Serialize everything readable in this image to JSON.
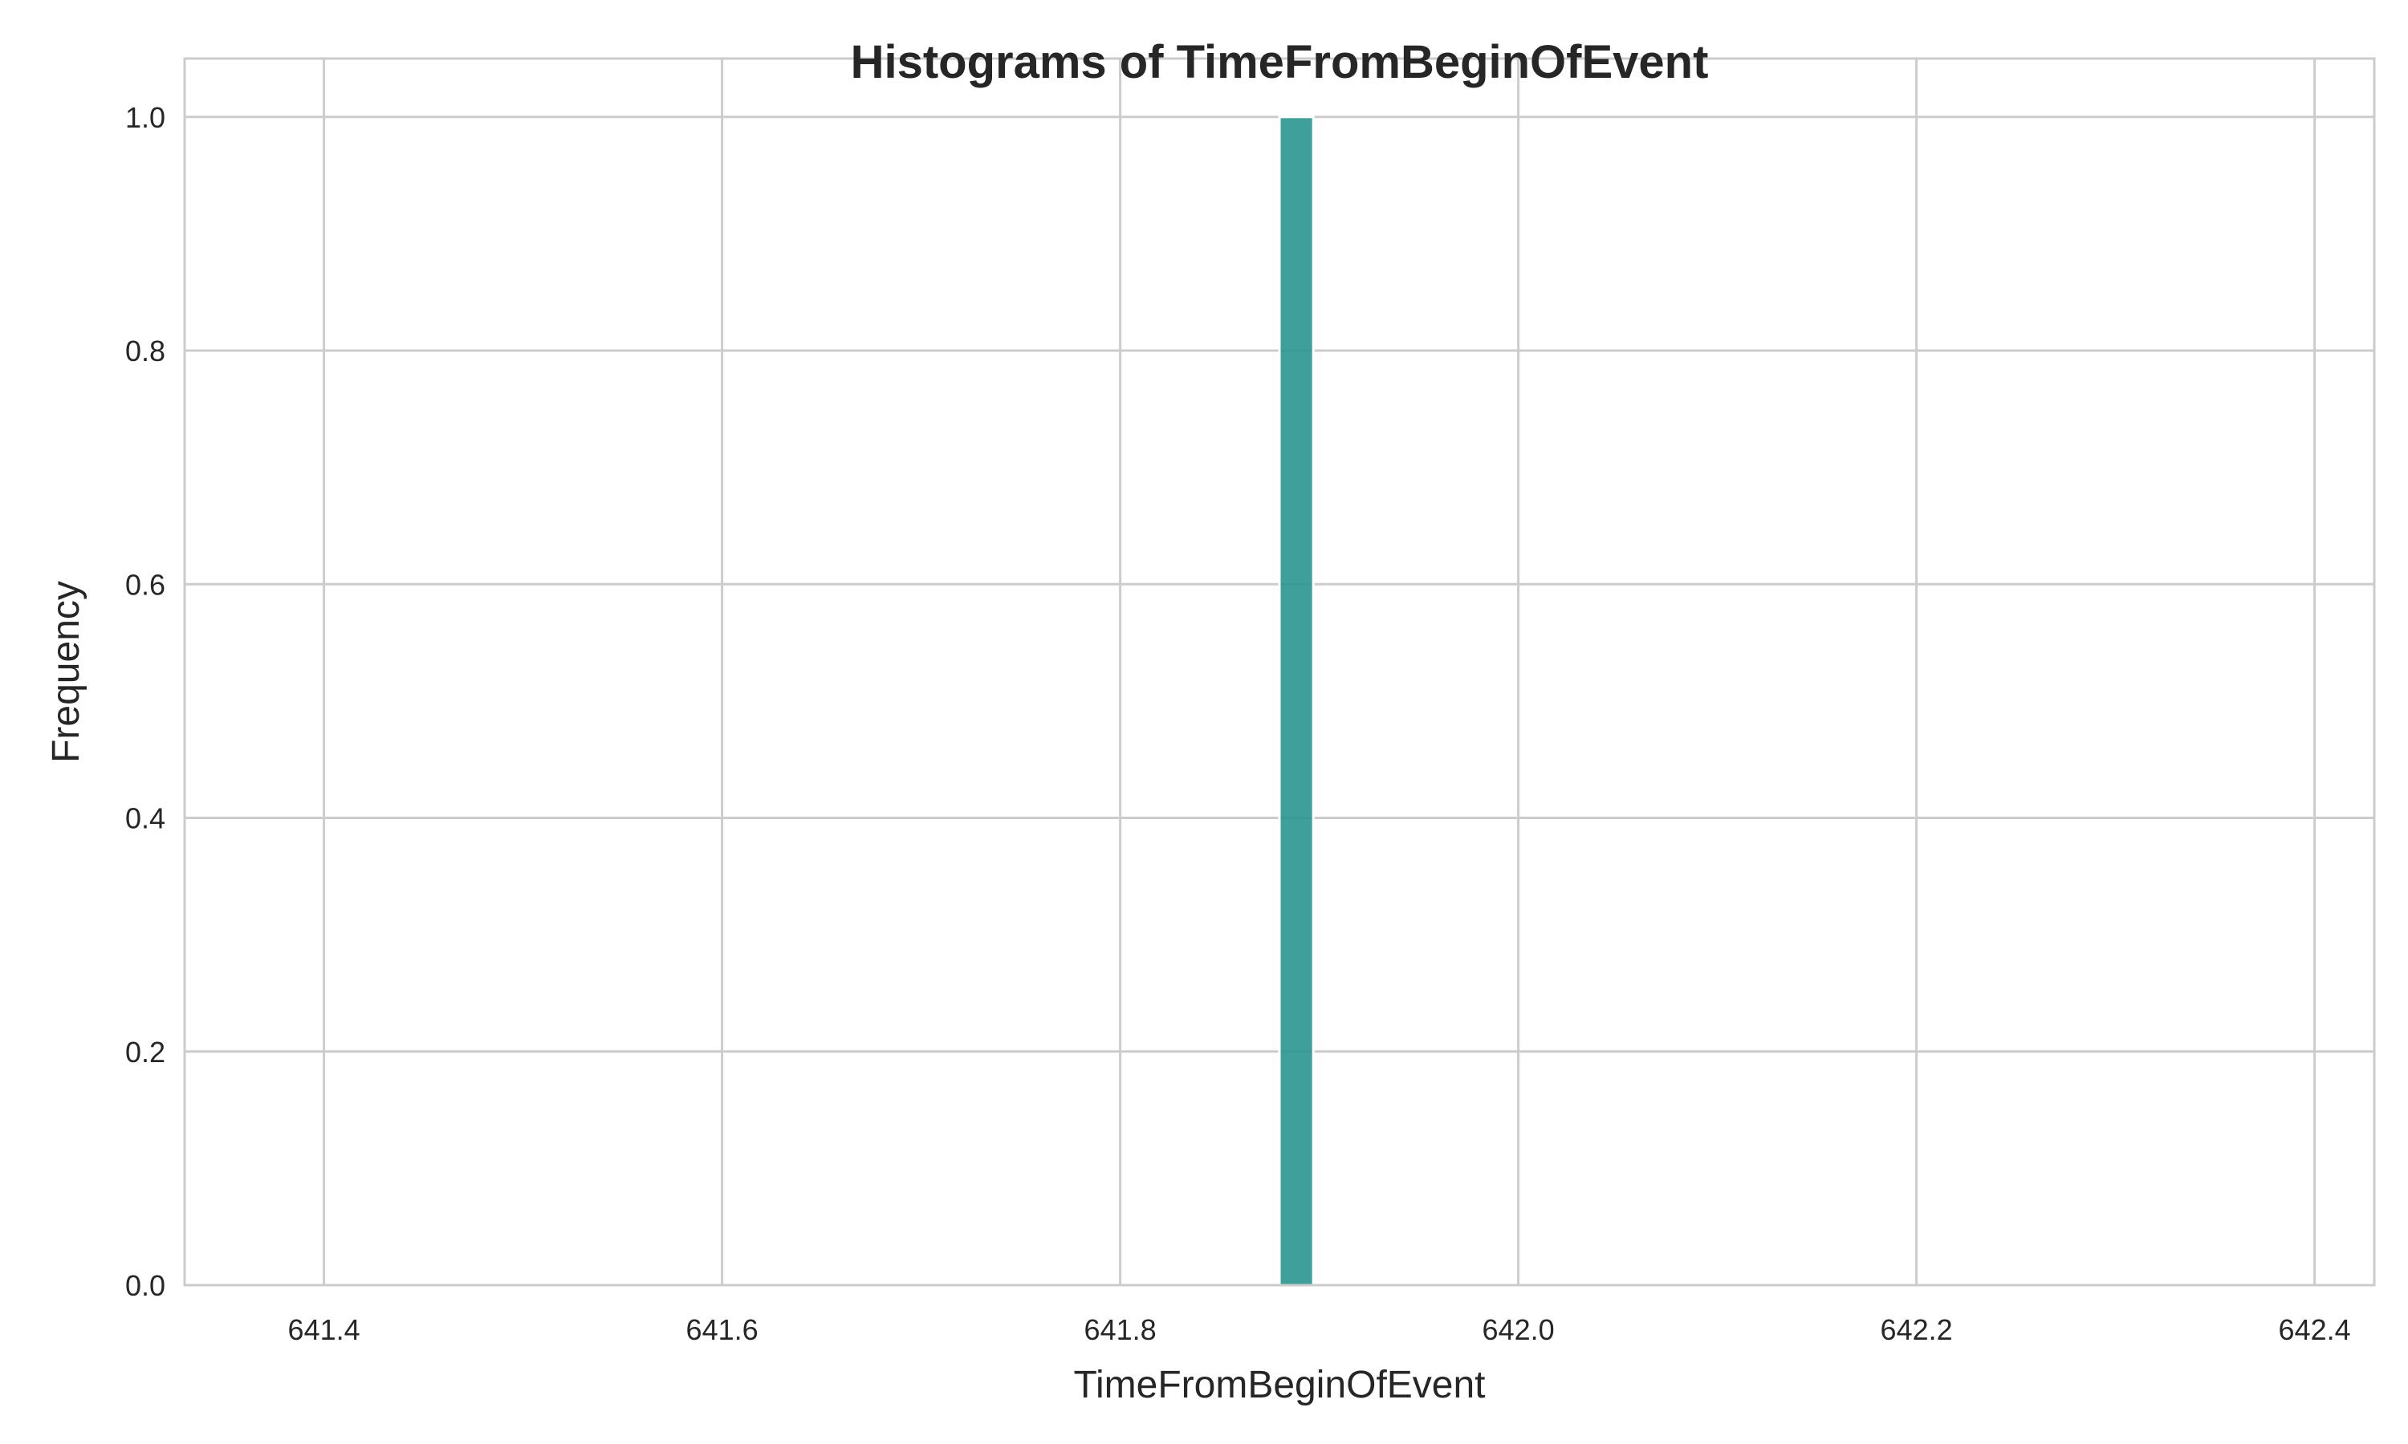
{
  "chart_data": {
    "type": "bar",
    "title": "Histograms of TimeFromBeginOfEvent",
    "xlabel": "TimeFromBeginOfEvent",
    "ylabel": "Frequency",
    "xlim": [
      641.33,
      642.43
    ],
    "ylim": [
      0,
      1.05
    ],
    "xticks": [
      641.4,
      641.6,
      641.8,
      642.0,
      642.2,
      642.4
    ],
    "xtick_labels": [
      "641.4",
      "641.6",
      "641.8",
      "642.0",
      "642.2",
      "642.4"
    ],
    "yticks": [
      0.0,
      0.2,
      0.4,
      0.6,
      0.8,
      1.0
    ],
    "ytick_labels": [
      "0.0",
      "0.2",
      "0.4",
      "0.6",
      "0.8",
      "1.0"
    ],
    "grid": true,
    "bins": [
      {
        "x0": 641.88,
        "x1": 641.897,
        "value": 1
      }
    ],
    "bar_color": "#2a9590"
  }
}
